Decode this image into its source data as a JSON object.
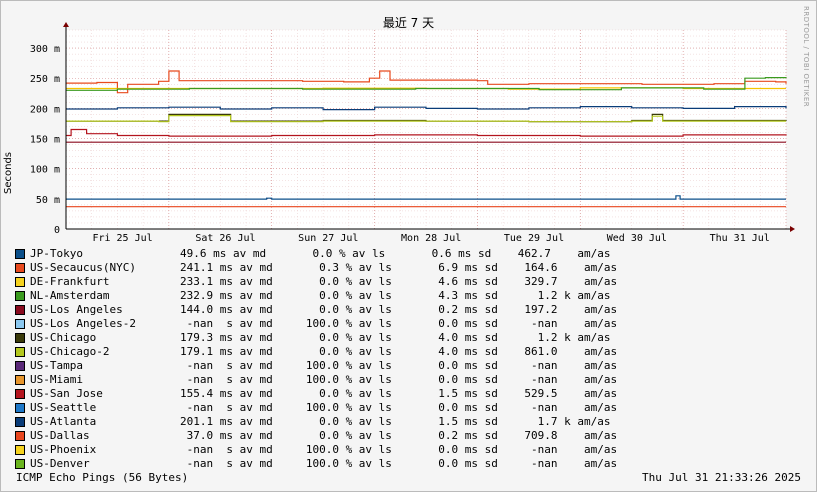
{
  "chart_data": {
    "type": "line",
    "title": "最近 7 天",
    "ylabel": "Seconds",
    "credit": "RRDTOOL / TOBI OETIKER",
    "ylim": [
      0,
      330
    ],
    "yticks": [
      {
        "v": 0,
        "label": "0"
      },
      {
        "v": 50,
        "label": "50 m"
      },
      {
        "v": 100,
        "label": "100 m"
      },
      {
        "v": 150,
        "label": "150 m"
      },
      {
        "v": 200,
        "label": "200 m"
      },
      {
        "v": 250,
        "label": "250 m"
      },
      {
        "v": 300,
        "label": "300 m"
      }
    ],
    "xlim": [
      0,
      7
    ],
    "xticks": [
      {
        "v": 0.55,
        "label": "Fri 25 Jul"
      },
      {
        "v": 1.55,
        "label": "Sat 26 Jul"
      },
      {
        "v": 2.55,
        "label": "Sun 27 Jul"
      },
      {
        "v": 3.55,
        "label": "Mon 28 Jul"
      },
      {
        "v": 4.55,
        "label": "Tue 29 Jul"
      },
      {
        "v": 5.55,
        "label": "Wed 30 Jul"
      },
      {
        "v": 6.55,
        "label": "Thu 31 Jul"
      }
    ],
    "series": [
      {
        "name": "JP-Tokyo",
        "color": "#0b4f8a",
        "values": [
          [
            0,
            49.6
          ],
          [
            1.9,
            49.6
          ],
          [
            1.95,
            51
          ],
          [
            2.0,
            49.6
          ],
          [
            5.9,
            49.6
          ],
          [
            5.93,
            55
          ],
          [
            5.97,
            49.6
          ],
          [
            7,
            49.6
          ]
        ]
      },
      {
        "name": "US-Secaucus(NYC)",
        "color": "#e84a1e",
        "values": [
          [
            0,
            242
          ],
          [
            0.3,
            243
          ],
          [
            0.5,
            226
          ],
          [
            0.6,
            240
          ],
          [
            0.9,
            245
          ],
          [
            1.0,
            262
          ],
          [
            1.1,
            246
          ],
          [
            1.6,
            246
          ],
          [
            2.3,
            245
          ],
          [
            2.7,
            244
          ],
          [
            2.95,
            250
          ],
          [
            3.05,
            262
          ],
          [
            3.15,
            247
          ],
          [
            4.0,
            246
          ],
          [
            4.1,
            240
          ],
          [
            4.5,
            241
          ],
          [
            5.1,
            241
          ],
          [
            5.6,
            240
          ],
          [
            6.3,
            241
          ],
          [
            6.6,
            245
          ],
          [
            6.9,
            244
          ],
          [
            7,
            241
          ]
        ]
      },
      {
        "name": "DE-Frankfurt",
        "color": "#f5c400",
        "values": [
          [
            0,
            233
          ],
          [
            1.5,
            233
          ],
          [
            2.5,
            233.5
          ],
          [
            3.5,
            233
          ],
          [
            4.3,
            232
          ],
          [
            5.0,
            234
          ],
          [
            6.0,
            233
          ],
          [
            6.8,
            233
          ],
          [
            7,
            233
          ]
        ]
      },
      {
        "name": "NL-Amsterdam",
        "color": "#3a9a1e",
        "values": [
          [
            0,
            230
          ],
          [
            0.5,
            232
          ],
          [
            1.2,
            233
          ],
          [
            2.3,
            232
          ],
          [
            3.4,
            233
          ],
          [
            4.6,
            231
          ],
          [
            5.4,
            234
          ],
          [
            6.2,
            232
          ],
          [
            6.6,
            250
          ],
          [
            6.8,
            251
          ],
          [
            7,
            250
          ]
        ]
      },
      {
        "name": "US-Los Angeles",
        "color": "#8a0a1e",
        "values": [
          [
            0,
            144
          ],
          [
            7,
            144
          ]
        ]
      },
      {
        "name": "US-Chicago",
        "color": "#3a3a0a",
        "values": [
          [
            0,
            179
          ],
          [
            0.9,
            179
          ],
          [
            1.0,
            190
          ],
          [
            1.5,
            190
          ],
          [
            1.6,
            179
          ],
          [
            2.5,
            180
          ],
          [
            3.5,
            179
          ],
          [
            4.5,
            178
          ],
          [
            5.5,
            180
          ],
          [
            5.7,
            190
          ],
          [
            5.8,
            180
          ],
          [
            7,
            179
          ]
        ]
      },
      {
        "name": "US-Chicago-2",
        "color": "#b4c81e",
        "values": [
          [
            0,
            179
          ],
          [
            0.9,
            178
          ],
          [
            1.0,
            188
          ],
          [
            1.5,
            188
          ],
          [
            1.6,
            178
          ],
          [
            2.5,
            179
          ],
          [
            3.5,
            179
          ],
          [
            4.5,
            178
          ],
          [
            5.5,
            179
          ],
          [
            5.7,
            187
          ],
          [
            5.8,
            179
          ],
          [
            7,
            179
          ]
        ]
      },
      {
        "name": "US-San Jose",
        "color": "#b4141e",
        "values": [
          [
            0,
            155
          ],
          [
            0.05,
            165
          ],
          [
            0.2,
            158
          ],
          [
            0.5,
            155
          ],
          [
            1.0,
            154
          ],
          [
            2.0,
            155
          ],
          [
            3.0,
            156
          ],
          [
            4.0,
            155
          ],
          [
            5.0,
            154
          ],
          [
            6.0,
            156
          ],
          [
            7,
            155
          ]
        ]
      },
      {
        "name": "US-Atlanta",
        "color": "#0a3c78",
        "values": [
          [
            0,
            199
          ],
          [
            0.5,
            201
          ],
          [
            1.0,
            202
          ],
          [
            1.5,
            199
          ],
          [
            2.0,
            201
          ],
          [
            2.5,
            198
          ],
          [
            3.0,
            202
          ],
          [
            3.5,
            200
          ],
          [
            4.0,
            199
          ],
          [
            4.5,
            201
          ],
          [
            5.0,
            203
          ],
          [
            5.5,
            201
          ],
          [
            6.0,
            200
          ],
          [
            6.5,
            203
          ],
          [
            7,
            200
          ]
        ]
      },
      {
        "name": "US-Dallas",
        "color": "#e8461e",
        "values": [
          [
            0,
            37
          ],
          [
            7,
            37
          ]
        ]
      }
    ],
    "legend": [
      {
        "name": "JP-Tokyo",
        "color": "#0b4f8a",
        "stats": "49.6 ms av md       0.0 % av ls       0.6 ms sd    462.7    am/as"
      },
      {
        "name": "US-Secaucus(NYC)",
        "color": "#e84a1e",
        "stats": "241.1 ms av md       0.3 % av ls       6.9 ms sd    164.6    am/as"
      },
      {
        "name": "DE-Frankfurt",
        "color": "#f5d21e",
        "stats": "233.1 ms av md       0.0 % av ls       4.6 ms sd    329.7    am/as"
      },
      {
        "name": "NL-Amsterdam",
        "color": "#3a9a1e",
        "stats": "232.9 ms av md       0.0 % av ls       4.3 ms sd      1.2 k am/as"
      },
      {
        "name": "US-Los Angeles",
        "color": "#8a0a1e",
        "stats": "144.0 ms av md       0.0 % av ls       0.2 ms sd    197.2    am/as"
      },
      {
        "name": "US-Los Angeles-2",
        "color": "#8cc8f0",
        "stats": " -nan  s av md     100.0 % av ls       0.0 ms sd     -nan    am/as"
      },
      {
        "name": "US-Chicago",
        "color": "#3a3a0a",
        "stats": "179.3 ms av md       0.0 % av ls       4.0 ms sd      1.2 k am/as"
      },
      {
        "name": "US-Chicago-2",
        "color": "#b4c81e",
        "stats": "179.1 ms av md       0.0 % av ls       4.0 ms sd    861.0    am/as"
      },
      {
        "name": "US-Tampa",
        "color": "#5a2878",
        "stats": " -nan  s av md     100.0 % av ls       0.0 ms sd     -nan    am/as"
      },
      {
        "name": "US-Miami",
        "color": "#e8962e",
        "stats": " -nan  s av md     100.0 % av ls       0.0 ms sd     -nan    am/as"
      },
      {
        "name": "US-San Jose",
        "color": "#b4141e",
        "stats": "155.4 ms av md       0.0 % av ls       1.5 ms sd    529.5    am/as"
      },
      {
        "name": "US-Seattle",
        "color": "#1e78c8",
        "stats": " -nan  s av md     100.0 % av ls       0.0 ms sd     -nan    am/as"
      },
      {
        "name": "US-Atlanta",
        "color": "#0a3c78",
        "stats": "201.1 ms av md       0.0 % av ls       1.5 ms sd      1.7 k am/as"
      },
      {
        "name": "US-Dallas",
        "color": "#e8461e",
        "stats": " 37.0 ms av md       0.0 % av ls       0.2 ms sd    709.8    am/as"
      },
      {
        "name": "US-Phoenix",
        "color": "#f5d21e",
        "stats": " -nan  s av md     100.0 % av ls       0.0 ms sd     -nan    am/as"
      },
      {
        "name": "US-Denver",
        "color": "#6ab41e",
        "stats": " -nan  s av md     100.0 % av ls       0.0 ms sd     -nan    am/as"
      }
    ],
    "footer_left": "ICMP Echo Pings (56 Bytes)",
    "footer_right": "Thu Jul 31 21:33:26 2025"
  }
}
